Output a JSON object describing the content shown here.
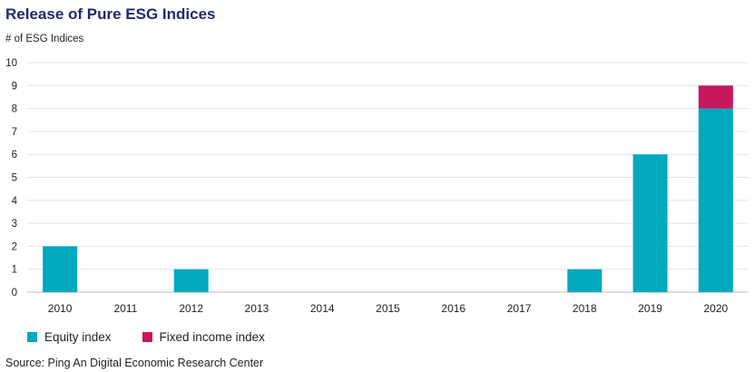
{
  "chart_data": {
    "type": "bar",
    "stacked": true,
    "title": "Release of Pure ESG Indices",
    "ylabel": "# of ESG Indices",
    "xlabel": "",
    "categories": [
      "2010",
      "2011",
      "2012",
      "2013",
      "2014",
      "2015",
      "2016",
      "2017",
      "2018",
      "2019",
      "2020"
    ],
    "series": [
      {
        "name": "Equity index",
        "color": "#00a9bd",
        "values": [
          2,
          0,
          1,
          0,
          0,
          0,
          0,
          0,
          1,
          6,
          8
        ]
      },
      {
        "name": "Fixed income index",
        "color": "#c8175d",
        "values": [
          0,
          0,
          0,
          0,
          0,
          0,
          0,
          0,
          0,
          0,
          1
        ]
      }
    ],
    "ylim": [
      0,
      10
    ],
    "yticks": [
      "0",
      "1",
      "2",
      "3",
      "4",
      "5",
      "6",
      "7",
      "8",
      "9",
      "10"
    ],
    "grid": true,
    "legend_position": "bottom-left"
  },
  "source": "Source: Ping An Digital Economic Research Center"
}
